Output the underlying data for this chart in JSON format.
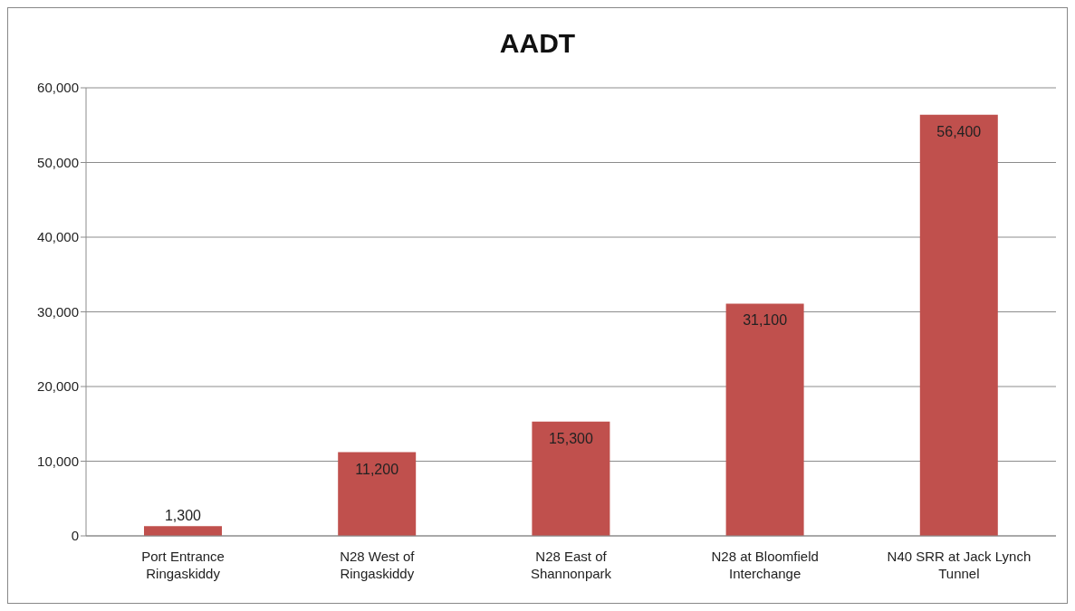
{
  "chart_data": {
    "type": "bar",
    "title": "AADT",
    "categories": [
      "Port Entrance Ringaskiddy",
      "N28 West of Ringaskiddy",
      "N28 East of Shannonpark",
      "N28 at Bloomfield Interchange",
      "N40 SRR at Jack Lynch Tunnel"
    ],
    "values": [
      1300,
      11200,
      15300,
      31100,
      56400
    ],
    "color": "#c0504d",
    "ylim": [
      0,
      60000
    ],
    "yticks": [
      {
        "value": 0,
        "label": "0"
      },
      {
        "value": 10000,
        "label": "10,000"
      },
      {
        "value": 20000,
        "label": "20,000"
      },
      {
        "value": 30000,
        "label": "30,000"
      },
      {
        "value": 40000,
        "label": "40,000"
      },
      {
        "value": 50000,
        "label": "50,000"
      },
      {
        "value": 60000,
        "label": "60,000"
      }
    ],
    "value_labels": [
      "1,300",
      "11,200",
      "15,300",
      "31,100",
      "56,400"
    ],
    "grid": "y",
    "legend": false
  }
}
